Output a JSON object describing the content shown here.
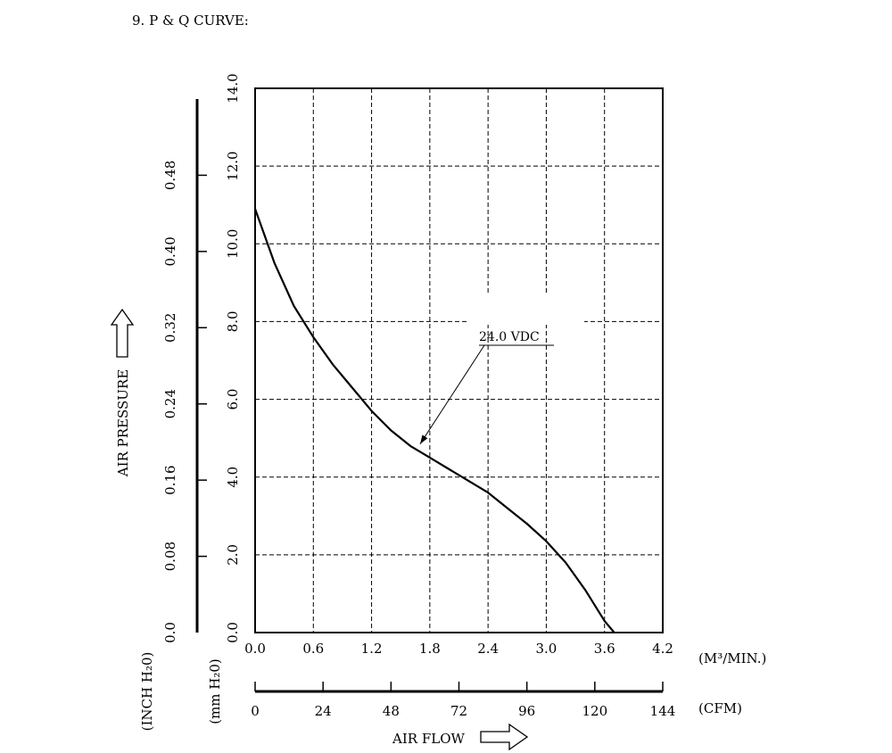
{
  "page": {
    "heading": "9. P & Q CURVE:"
  },
  "chart_data": {
    "type": "line",
    "title": "",
    "x_label": "AIR FLOW",
    "y_label": "AIR PRESSURE",
    "x_units_primary": "(M³/MIN.)",
    "x_units_secondary": "(CFM)",
    "y_units_primary": "(mm H₂0)",
    "y_units_secondary": "(INCH H₂0)",
    "xlim": [
      0,
      4.2
    ],
    "ylim": [
      0,
      14
    ],
    "x_ticks": [
      "0.0",
      "0.6",
      "1.2",
      "1.8",
      "2.4",
      "3.0",
      "3.6",
      "4.2"
    ],
    "y_ticks": [
      "0.0",
      "2.0",
      "4.0",
      "6.0",
      "8.0",
      "10.0",
      "12.0",
      "14.0"
    ],
    "cfm_ticks": [
      "0",
      "24",
      "48",
      "72",
      "96",
      "120",
      "144"
    ],
    "cfm_lim": [
      0,
      144
    ],
    "inch_ticks": [
      "0.0",
      "0.08",
      "0.16",
      "0.24",
      "0.32",
      "0.40",
      "0.48"
    ],
    "inch_lim": [
      0,
      0.56
    ],
    "grid": true,
    "series": [
      {
        "name": "24.0 VDC",
        "x": [
          0.0,
          0.2,
          0.4,
          0.6,
          0.8,
          1.0,
          1.2,
          1.4,
          1.6,
          1.8,
          2.0,
          2.2,
          2.4,
          2.6,
          2.8,
          3.0,
          3.2,
          3.4,
          3.6,
          3.7
        ],
        "y": [
          10.9,
          9.5,
          8.4,
          7.6,
          6.9,
          6.3,
          5.7,
          5.2,
          4.8,
          4.5,
          4.2,
          3.9,
          3.6,
          3.2,
          2.8,
          2.35,
          1.8,
          1.1,
          0.3,
          0.0
        ]
      }
    ],
    "annotation": {
      "text": "24.0 VDC",
      "point": [
        1.7,
        4.85
      ]
    }
  }
}
